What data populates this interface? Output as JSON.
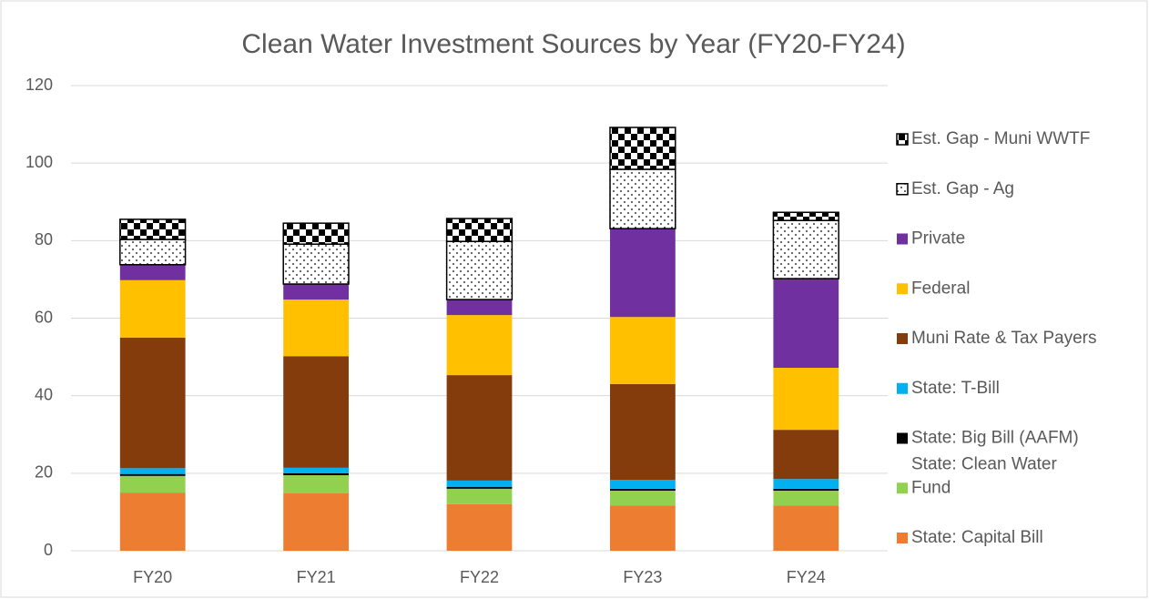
{
  "chart_data": {
    "type": "stacked_bar",
    "title": "Clean Water Investment Sources by Year (FY20-FY24)",
    "categories": [
      "FY20",
      "FY21",
      "FY22",
      "FY23",
      "FY24"
    ],
    "ylim": [
      0,
      120
    ],
    "yticks": [
      0,
      20,
      40,
      60,
      80,
      100,
      120
    ],
    "grid": true,
    "legend": "right",
    "series": [
      {
        "name": "State: Capital Bill",
        "color": "#ED7D31",
        "values": [
          15,
          14.8,
          12,
          11.7,
          11.7
        ]
      },
      {
        "name": "State: Clean Water Fund",
        "color": "#92D050",
        "values": [
          4.3,
          4.7,
          4,
          3.8,
          3.8
        ]
      },
      {
        "name": "State: Big Bill (AAFM)",
        "color": "#000000",
        "values": [
          0.5,
          0.5,
          0.5,
          0.5,
          0.5
        ]
      },
      {
        "name": "State: T-Bill",
        "color": "#00B0F0",
        "values": [
          1.5,
          1.4,
          1.6,
          2.3,
          2.5
        ]
      },
      {
        "name": "Muni Rate & Tax Payers",
        "color": "#843C0C",
        "values": [
          33.7,
          28.8,
          27.2,
          24.7,
          12.7
        ]
      },
      {
        "name": "Federal",
        "color": "#FFC000",
        "values": [
          14.8,
          14.6,
          15.5,
          17.3,
          16
        ]
      },
      {
        "name": "Private",
        "color": "#7030A0",
        "values": [
          4,
          4,
          4,
          22.8,
          23
        ]
      },
      {
        "name": "Est. Gap - Ag",
        "color": "#000000",
        "pattern": "dots",
        "values": [
          6.5,
          10.3,
          15,
          15.3,
          15
        ]
      },
      {
        "name": "Est. Gap - Muni WWTF",
        "color": "#000000",
        "pattern": "checker",
        "values": [
          5.2,
          5.4,
          5.9,
          10.8,
          2.1
        ]
      }
    ]
  }
}
